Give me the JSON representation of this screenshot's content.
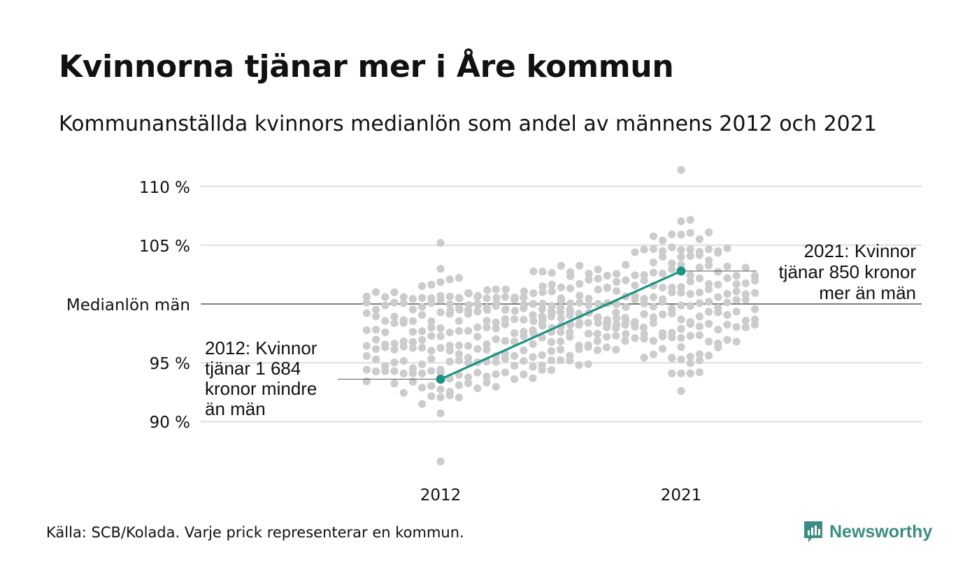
{
  "title": "Kvinnorna tjänar mer i Åre kommun",
  "subtitle": "Kommunanställda kvinnors medianlön som andel av männens 2012 och 2021",
  "source": "Källa: SCB/Kolada. Varje prick representerar en kommun.",
  "brand": "Newsworthy",
  "colors": {
    "dot": "#cccccc",
    "highlight": "#1b9483",
    "grid": "#e3e3e3",
    "reference": "#333333",
    "brand": "#3b8d84"
  },
  "chart_data": {
    "type": "scatter",
    "subtype": "beeswarm",
    "categories": [
      "2012",
      "2021"
    ],
    "ylim": [
      86,
      112
    ],
    "yticks": [
      {
        "value": 110,
        "label": "110 %"
      },
      {
        "value": 105,
        "label": "105 %"
      },
      {
        "value": 100,
        "label": "Medianlön män"
      },
      {
        "value": 95,
        "label": "95 %"
      },
      {
        "value": 90,
        "label": "90 %"
      }
    ],
    "reference_line": {
      "value": 100,
      "label": "Medianlön män"
    },
    "highlight": {
      "name": "Åre",
      "values": [
        93.6,
        102.8
      ]
    },
    "annotations": [
      {
        "category": "2012",
        "value": 93.6,
        "lines": [
          "2012: Kvinnor",
          "tjänar 1 684",
          "kronor mindre",
          "än män"
        ]
      },
      {
        "category": "2021",
        "value": 102.8,
        "lines": [
          "2021: Kvinnor",
          "tjänar 850 kronor",
          "mer än män"
        ]
      }
    ],
    "distribution": [
      {
        "category": "2012",
        "min": 86.6,
        "max": 105.2,
        "median": 97.0,
        "n": 290
      },
      {
        "category": "2021",
        "min": 92.6,
        "max": 111.4,
        "median": 100.5,
        "n": 290
      }
    ],
    "grid": true,
    "legend": "none"
  }
}
